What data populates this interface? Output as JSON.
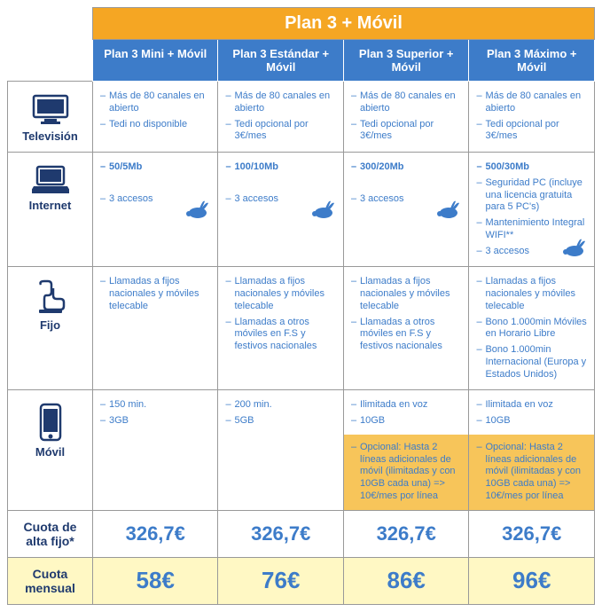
{
  "header": {
    "main": "Plan 3 + Móvil"
  },
  "plans": [
    {
      "name": "Plan 3 Mini + Móvil"
    },
    {
      "name": "Plan 3 Estándar + Móvil"
    },
    {
      "name": "Plan 3 Superior + Móvil"
    },
    {
      "name": "Plan 3 Máximo + Móvil"
    }
  ],
  "rows": {
    "tv": {
      "label": "Televisión",
      "cells": [
        [
          "Más de 80 canales en abierto",
          "Tedi no disponible"
        ],
        [
          "Más de 80 canales en abierto",
          "Tedi opcional por 3€/mes"
        ],
        [
          "Más de 80 canales en abierto",
          "Tedi opcional por 3€/mes"
        ],
        [
          "Más de 80 canales en abierto",
          "Tedi opcional por 3€/mes"
        ]
      ]
    },
    "internet": {
      "label": "Internet",
      "cells": [
        {
          "speed": "50/5Mb",
          "items": [
            "3 accesos"
          ]
        },
        {
          "speed": "100/10Mb",
          "items": [
            "3 accesos"
          ]
        },
        {
          "speed": "300/20Mb",
          "items": [
            "3 accesos"
          ]
        },
        {
          "speed": "500/30Mb",
          "items": [
            "Seguridad PC (incluye una licencia gratuita para 5 PC's)",
            "Mantenimiento Integral WIFI**",
            "3 accesos"
          ]
        }
      ]
    },
    "fijo": {
      "label": "Fijo",
      "cells": [
        [
          "Llamadas a fijos nacionales y móviles telecable"
        ],
        [
          "Llamadas a fijos nacionales y móviles telecable",
          "Llamadas a otros móviles en F.S y festivos nacionales"
        ],
        [
          "Llamadas a fijos nacionales y móviles telecable",
          "Llamadas a otros móviles en F.S y festivos nacionales"
        ],
        [
          "Llamadas a fijos nacionales y móviles telecable",
          "Bono 1.000min Móviles en Horario Libre",
          "Bono 1.000min Internacional (Europa y Estados Unidos)"
        ]
      ]
    },
    "movil": {
      "label": "Móvil",
      "cells": [
        {
          "items": [
            "150 min.",
            "3GB"
          ],
          "promo": null
        },
        {
          "items": [
            "200 min.",
            "5GB"
          ],
          "promo": null
        },
        {
          "items": [
            "Ilimitada en voz",
            "10GB"
          ],
          "promo": "Opcional: Hasta 2 líneas adicionales de móvil (ilimitadas y con 10GB cada una)\n  => 10€/mes por línea"
        },
        {
          "items": [
            "Ilimitada en voz",
            "10GB"
          ],
          "promo": "Opcional: Hasta 2 líneas adicionales de móvil (ilimitadas y con 10GB cada una)\n  => 10€/mes por línea"
        }
      ]
    }
  },
  "cuota": {
    "label": "Cuota de alta fijo*",
    "values": [
      "326,7€",
      "326,7€",
      "326,7€",
      "326,7€"
    ]
  },
  "mensual": {
    "label": "Cuota mensual",
    "values": [
      "58€",
      "76€",
      "86€",
      "96€"
    ]
  },
  "colors": {
    "orange": "#f5a623",
    "promo_bg": "#f7c55a",
    "blue_header": "#3d7cc9",
    "blue_text": "#3d7cc9",
    "dark_blue": "#1f3a6e",
    "yellow_light": "#fff8c4"
  }
}
